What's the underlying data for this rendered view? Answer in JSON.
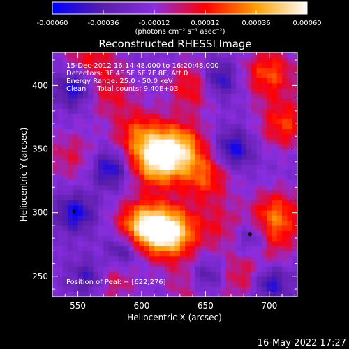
{
  "chart_data": {
    "type": "heatmap",
    "title": "Reconstructed RHESSI Image",
    "xlabel": "Heliocentric X (arcsec)",
    "ylabel": "Heliocentric Y (arcsec)",
    "xlim": [
      530,
      722
    ],
    "ylim": [
      234,
      426
    ],
    "xticks": [
      550,
      600,
      650,
      700
    ],
    "yticks": [
      250,
      300,
      350,
      400
    ],
    "colorbar": {
      "min": -0.0006,
      "max": 0.0006,
      "ticks": [
        -0.0006,
        -0.00036,
        -0.00012,
        0.00012,
        0.00036,
        0.0006
      ],
      "tick_labels": [
        "-0.00060",
        "-0.00036",
        "-0.00012",
        "0.00012",
        "0.00036",
        "0.00060"
      ],
      "units": "(photons cm⁻² s⁻¹ asec⁻²)"
    },
    "colormap": [
      "#0000ff",
      "#5a1ea8",
      "#8a2ee0",
      "#ff0000",
      "#ffa000",
      "#ffffff"
    ],
    "annotations": [
      "15-Dec-2012 16:14:48.000 to 16:20:48.000",
      "Detectors: 3F 4F 5F 6F 7F 8F, Att 0",
      "Energy Range: 25.0 - 50.0 keV",
      "Clean     Total counts: 9.40E+03",
      "Position of Peak = [622,276]"
    ],
    "peak": {
      "x": 622,
      "y": 276
    },
    "sources": [
      {
        "x": 622,
        "y": 285,
        "peak": 1.0
      },
      {
        "x": 600,
        "y": 290,
        "peak": 0.8
      },
      {
        "x": 612,
        "y": 340,
        "peak": 0.85
      },
      {
        "x": 630,
        "y": 352,
        "peak": 0.7
      },
      {
        "x": 598,
        "y": 362,
        "peak": 0.5
      },
      {
        "x": 650,
        "y": 328,
        "peak": 0.5
      },
      {
        "x": 700,
        "y": 410,
        "peak": 0.55
      },
      {
        "x": 712,
        "y": 370,
        "peak": 0.5
      },
      {
        "x": 706,
        "y": 300,
        "peak": 0.5
      },
      {
        "x": 700,
        "y": 280,
        "peak": 0.4
      },
      {
        "x": 640,
        "y": 400,
        "peak": 0.45
      },
      {
        "x": 560,
        "y": 425,
        "peak": 0.4
      },
      {
        "x": 575,
        "y": 395,
        "peak": 0.35
      },
      {
        "x": 575,
        "y": 250,
        "peak": 0.4
      },
      {
        "x": 640,
        "y": 245,
        "peak": 0.35
      },
      {
        "x": 545,
        "y": 345,
        "peak": 0.3
      },
      {
        "x": 680,
        "y": 250,
        "peak": 0.35
      },
      {
        "x": 660,
        "y": 290,
        "peak": 0.3
      }
    ],
    "minima": [
      {
        "x": 548,
        "y": 300
      },
      {
        "x": 688,
        "y": 280
      },
      {
        "x": 560,
        "y": 250
      },
      {
        "x": 660,
        "y": 405
      },
      {
        "x": 548,
        "y": 398
      },
      {
        "x": 575,
        "y": 335
      },
      {
        "x": 650,
        "y": 250
      },
      {
        "x": 700,
        "y": 245
      },
      {
        "x": 672,
        "y": 350
      },
      {
        "x": 585,
        "y": 270
      }
    ],
    "markers": [
      {
        "x": 547,
        "y": 301
      },
      {
        "x": 685,
        "y": 283
      }
    ]
  },
  "footer": {
    "date": "16-May-2022 17:27"
  }
}
